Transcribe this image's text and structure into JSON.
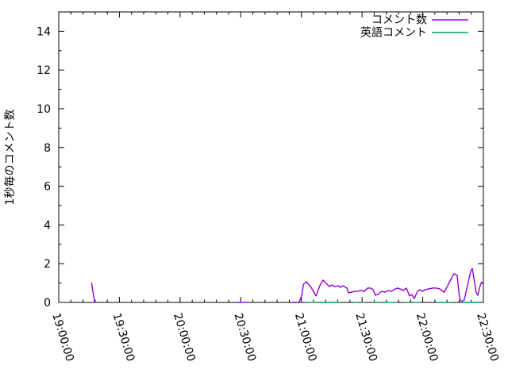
{
  "chart_data": {
    "type": "line",
    "title": "",
    "xlabel": "",
    "ylabel": "1秒毎のコメント数",
    "x_axis": {
      "unit": "time (HH:MM:SS)",
      "range_minutes_from_19h": [
        0,
        210
      ],
      "major_ticks": [
        {
          "t": 0,
          "label": "19:00:00"
        },
        {
          "t": 30,
          "label": "19:30:00"
        },
        {
          "t": 60,
          "label": "20:00:00"
        },
        {
          "t": 90,
          "label": "20:30:00"
        },
        {
          "t": 120,
          "label": "21:00:00"
        },
        {
          "t": 150,
          "label": "21:30:00"
        },
        {
          "t": 180,
          "label": "22:00:00"
        },
        {
          "t": 210,
          "label": "22:30:00"
        }
      ],
      "minor_tick_step_minutes": 6
    },
    "y_axis": {
      "range": [
        0,
        15
      ],
      "major_ticks": [
        0,
        2,
        4,
        6,
        8,
        10,
        12,
        14
      ],
      "minor_tick_step": 1
    },
    "legend": {
      "position": "top-right-inside",
      "entries": [
        "コメント数",
        "英語コメント"
      ]
    },
    "series": [
      {
        "name": "コメント数",
        "color": "#9400d3",
        "segments": [
          [
            [
              16.2,
              1.02
            ],
            [
              17.8,
              0.0
            ]
          ],
          [
            [
              87.9,
              0.0
            ],
            [
              93.0,
              0.0
            ]
          ],
          [
            [
              114.6,
              0.0
            ],
            [
              118.9,
              0.0
            ],
            [
              120.3,
              0.41
            ],
            [
              121.0,
              0.94
            ],
            [
              122.5,
              1.07
            ],
            [
              124.8,
              0.78
            ],
            [
              127.2,
              0.33
            ],
            [
              129.1,
              0.86
            ],
            [
              130.7,
              1.15
            ],
            [
              131.9,
              1.03
            ],
            [
              133.8,
              0.82
            ],
            [
              135.0,
              0.9
            ],
            [
              136.6,
              0.82
            ],
            [
              138.2,
              0.86
            ],
            [
              139.3,
              0.78
            ],
            [
              140.5,
              0.86
            ],
            [
              142.5,
              0.74
            ],
            [
              143.3,
              0.49
            ],
            [
              144.8,
              0.53
            ],
            [
              146.4,
              0.57
            ],
            [
              147.6,
              0.57
            ],
            [
              149.6,
              0.61
            ],
            [
              151.1,
              0.57
            ],
            [
              152.7,
              0.74
            ],
            [
              154.3,
              0.74
            ],
            [
              155.4,
              0.66
            ],
            [
              156.6,
              0.37
            ],
            [
              158.2,
              0.45
            ],
            [
              159.7,
              0.57
            ],
            [
              161.3,
              0.53
            ],
            [
              162.9,
              0.61
            ],
            [
              164.5,
              0.57
            ],
            [
              166.4,
              0.7
            ],
            [
              167.6,
              0.74
            ],
            [
              168.8,
              0.7
            ],
            [
              170.3,
              0.61
            ],
            [
              171.9,
              0.74
            ],
            [
              173.5,
              0.33
            ],
            [
              174.6,
              0.41
            ],
            [
              175.8,
              0.2
            ],
            [
              177.4,
              0.57
            ],
            [
              178.6,
              0.66
            ],
            [
              179.8,
              0.57
            ],
            [
              181.3,
              0.66
            ],
            [
              182.9,
              0.7
            ],
            [
              184.9,
              0.74
            ],
            [
              186.8,
              0.74
            ],
            [
              188.4,
              0.7
            ],
            [
              190.0,
              0.57
            ],
            [
              190.7,
              0.53
            ],
            [
              192.7,
              0.94
            ],
            [
              193.9,
              1.19
            ],
            [
              195.4,
              1.48
            ],
            [
              197.0,
              1.4
            ],
            [
              198.2,
              0.25
            ],
            [
              199.0,
              0.04
            ],
            [
              200.5,
              0.12
            ],
            [
              202.1,
              0.86
            ],
            [
              203.7,
              1.6
            ],
            [
              204.5,
              1.76
            ],
            [
              205.3,
              1.27
            ],
            [
              206.4,
              0.53
            ],
            [
              207.2,
              0.37
            ],
            [
              208.4,
              0.86
            ],
            [
              209.2,
              1.07
            ]
          ]
        ]
      },
      {
        "name": "英語コメント",
        "color": "#009e73",
        "segments": [
          [
            [
              122.0,
              0
            ],
            [
              128.0,
              0
            ]
          ],
          [
            [
              129.9,
              0
            ],
            [
              139.7,
              0
            ]
          ],
          [
            [
              145.6,
              0
            ],
            [
              148.0,
              0
            ]
          ],
          [
            [
              149.6,
              0
            ],
            [
              151.5,
              0
            ]
          ],
          [
            [
              155.4,
              0
            ],
            [
              159.4,
              0
            ]
          ],
          [
            [
              161.3,
              0
            ],
            [
              167.2,
              0
            ]
          ],
          [
            [
              171.1,
              0
            ],
            [
              173.1,
              0
            ]
          ],
          [
            [
              175.0,
              0
            ],
            [
              179.0,
              0
            ]
          ],
          [
            [
              186.8,
              0
            ],
            [
              194.6,
              0
            ]
          ],
          [
            [
              198.6,
              0
            ],
            [
              207.6,
              0
            ]
          ]
        ]
      }
    ]
  },
  "colors": {
    "background": "#ffffff",
    "axis": "#000000",
    "text": "#000000"
  }
}
